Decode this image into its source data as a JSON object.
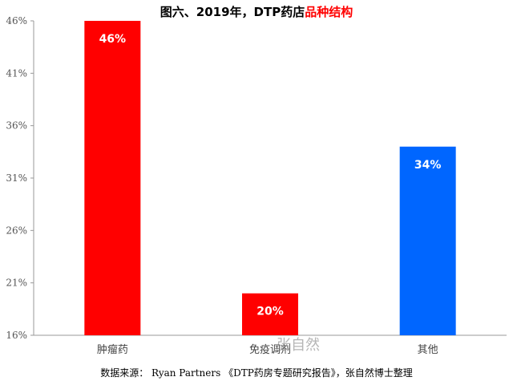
{
  "title_prefix": "图六、2019年，DTP药店",
  "title_highlight": "品种结构",
  "source_note": "数据来源： Ryan Partners 《DTP药房专题研究报告》，张自然博士整理",
  "watermark": "张自然",
  "colors": {
    "bar_red": "#ff0000",
    "bar_blue": "#0066ff",
    "title_highlight": "#ff0000"
  },
  "chart_data": {
    "type": "bar",
    "categories": [
      "肿瘤药",
      "免疫调剂",
      "其他"
    ],
    "values": [
      46,
      20,
      34
    ],
    "data_labels": [
      "46%",
      "20%",
      "34%"
    ],
    "bar_colors": [
      "#ff0000",
      "#ff0000",
      "#0066ff"
    ],
    "ylim": [
      16,
      46
    ],
    "yticks": [
      16,
      21,
      26,
      31,
      36,
      41,
      46
    ],
    "ytick_labels": [
      "16%",
      "21%",
      "26%",
      "31%",
      "36%",
      "41%",
      "46%"
    ],
    "grid": false,
    "legend": "none"
  }
}
